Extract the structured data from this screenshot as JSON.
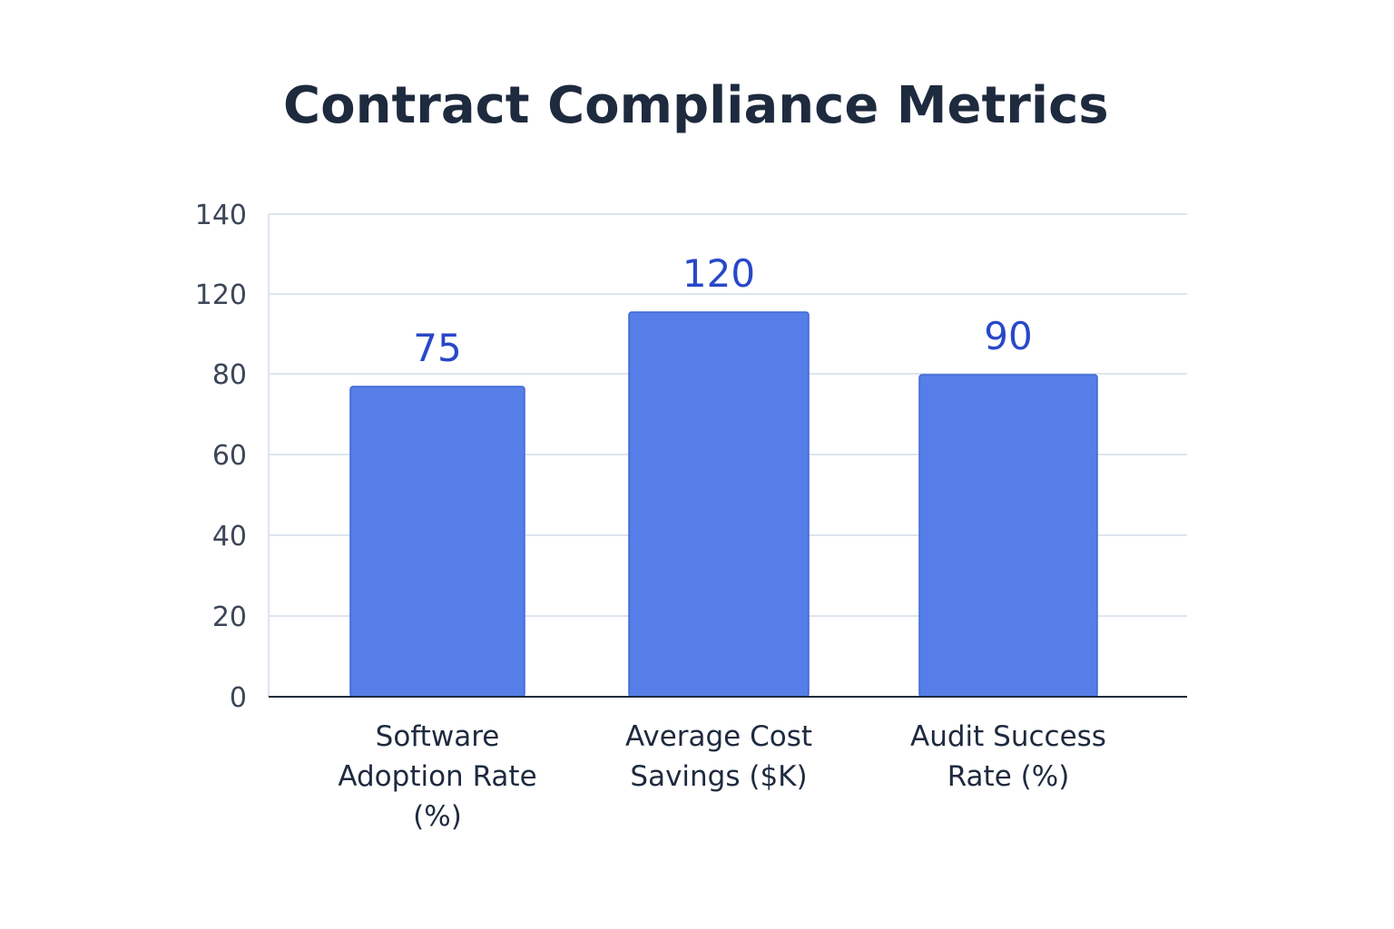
{
  "chart_data": {
    "type": "bar",
    "title": "Contract Compliance Metrics",
    "xlabel": "",
    "ylabel": "",
    "categories": [
      [
        "Software",
        "Adoption Rate",
        "(%)"
      ],
      [
        "Average Cost",
        "Savings ($K)"
      ],
      [
        "Audit Success",
        "Rate (%)"
      ]
    ],
    "values": [
      75,
      120,
      90
    ],
    "y_ticks": [
      "0",
      "20",
      "40",
      "60",
      "80",
      "120",
      "140"
    ],
    "grid": true,
    "legend": "none",
    "colors": {
      "bar": "#557ee8",
      "bar_edge": "#3f67d6",
      "value_label": "#2748c9",
      "grid": "#dde5ee",
      "axis": "#1e2a3e"
    }
  }
}
